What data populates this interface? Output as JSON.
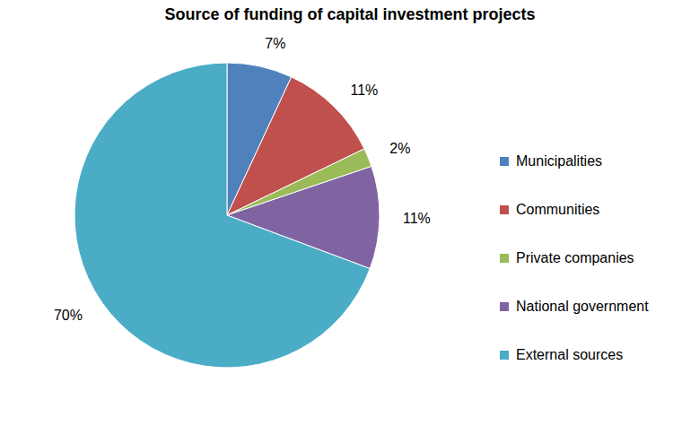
{
  "chart_data": {
    "type": "pie",
    "title": "Source of funding of capital investment projects",
    "categories": [
      "Municipalities",
      "Communities",
      "Private companies",
      "National government",
      "External sources"
    ],
    "values": [
      7,
      11,
      2,
      11,
      70
    ],
    "value_labels": [
      "7%",
      "11%",
      "2%",
      "11%",
      "70%"
    ],
    "colors": [
      "#4f81bd",
      "#c0504d",
      "#9bbb59",
      "#8064a2",
      "#4bacc6"
    ],
    "data_labels": true,
    "legend": "right"
  }
}
